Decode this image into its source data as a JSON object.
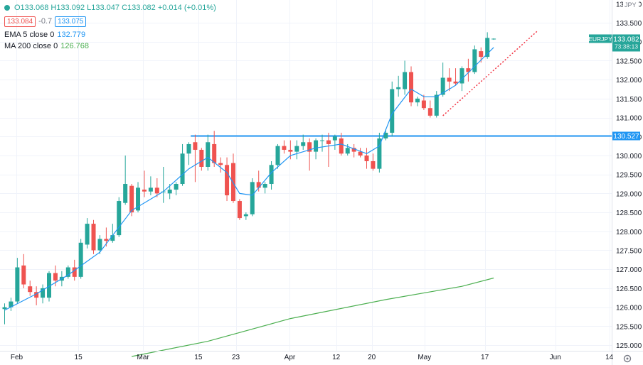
{
  "legend": {
    "ohlc": "O133.068 H133.092 L133.047 C133.082 +0.014 (+0.01%)",
    "sell_price": "133.084",
    "spread": "-0.7",
    "buy_price": "133.075",
    "ema_label": "EMA 5 close 0",
    "ema_value": "132.779",
    "ma_label": "MA 200 close 0",
    "ma_value": "126.768"
  },
  "price_scale": {
    "currency": "JPY",
    "ticks": [
      "125.000",
      "125.500",
      "126.000",
      "126.500",
      "127.000",
      "127.500",
      "128.000",
      "128.500",
      "129.000",
      "129.500",
      "130.000",
      "130.500",
      "131.000",
      "131.500",
      "132.000",
      "132.500",
      "133.000",
      "133.500"
    ],
    "clipped_top_tick": "134.000"
  },
  "time_axis": {
    "ticks": [
      "Feb",
      "15",
      "Mar",
      "15",
      "23",
      "Apr",
      "12",
      "20",
      "May",
      "17",
      "Jun",
      "14"
    ]
  },
  "badges": {
    "symbol": "EURJPY",
    "last_price": "133.082",
    "countdown": "73:38:13",
    "hline_price": "130.527"
  },
  "colors": {
    "up": "#26a69a",
    "down": "#ef5350",
    "ema": "#2196f3",
    "ma": "#4caf50",
    "hline": "#2196f3",
    "trend": "#f23645",
    "grid": "#f0f3fa"
  },
  "chart_data": {
    "type": "candlestick",
    "symbol": "EURJPY",
    "ylim": [
      124.85,
      134.1
    ],
    "horizontal_line": 130.527,
    "candles": [
      {
        "o": 125.95,
        "h": 126.1,
        "l": 125.55,
        "c": 126.0
      },
      {
        "o": 126.0,
        "h": 126.25,
        "l": 125.9,
        "c": 126.15
      },
      {
        "o": 126.15,
        "h": 127.3,
        "l": 126.1,
        "c": 127.05
      },
      {
        "o": 127.1,
        "h": 127.4,
        "l": 126.5,
        "c": 126.6
      },
      {
        "o": 126.55,
        "h": 126.7,
        "l": 126.3,
        "c": 126.4
      },
      {
        "o": 126.4,
        "h": 126.55,
        "l": 126.05,
        "c": 126.25
      },
      {
        "o": 126.25,
        "h": 126.6,
        "l": 126.1,
        "c": 126.5
      },
      {
        "o": 126.25,
        "h": 126.95,
        "l": 126.15,
        "c": 126.9
      },
      {
        "o": 126.9,
        "h": 127.1,
        "l": 126.55,
        "c": 126.7
      },
      {
        "o": 126.7,
        "h": 126.95,
        "l": 126.55,
        "c": 126.8
      },
      {
        "o": 126.8,
        "h": 127.1,
        "l": 126.75,
        "c": 127.05
      },
      {
        "o": 127.05,
        "h": 127.25,
        "l": 126.7,
        "c": 126.8
      },
      {
        "o": 126.8,
        "h": 127.8,
        "l": 126.75,
        "c": 127.7
      },
      {
        "o": 127.65,
        "h": 128.35,
        "l": 127.55,
        "c": 128.2
      },
      {
        "o": 128.2,
        "h": 128.3,
        "l": 127.4,
        "c": 127.5
      },
      {
        "o": 127.5,
        "h": 127.9,
        "l": 127.4,
        "c": 127.8
      },
      {
        "o": 127.8,
        "h": 128.1,
        "l": 127.6,
        "c": 127.75
      },
      {
        "o": 127.75,
        "h": 128.2,
        "l": 127.7,
        "c": 127.9
      },
      {
        "o": 127.9,
        "h": 128.9,
        "l": 127.85,
        "c": 128.8
      },
      {
        "o": 128.75,
        "h": 130.0,
        "l": 128.7,
        "c": 129.25
      },
      {
        "o": 129.2,
        "h": 129.25,
        "l": 128.4,
        "c": 128.5
      },
      {
        "o": 128.55,
        "h": 129.3,
        "l": 128.5,
        "c": 129.15
      },
      {
        "o": 129.1,
        "h": 129.6,
        "l": 128.9,
        "c": 129.05
      },
      {
        "o": 129.05,
        "h": 129.45,
        "l": 128.95,
        "c": 129.15
      },
      {
        "o": 129.15,
        "h": 129.4,
        "l": 128.9,
        "c": 129.0
      },
      {
        "o": 129.05,
        "h": 129.7,
        "l": 128.75,
        "c": 129.05
      },
      {
        "o": 129.0,
        "h": 129.25,
        "l": 128.85,
        "c": 129.1
      },
      {
        "o": 129.1,
        "h": 129.3,
        "l": 128.95,
        "c": 129.25
      },
      {
        "o": 129.25,
        "h": 130.3,
        "l": 129.2,
        "c": 130.05
      },
      {
        "o": 130.05,
        "h": 130.35,
        "l": 129.75,
        "c": 130.3
      },
      {
        "o": 130.35,
        "h": 130.55,
        "l": 129.3,
        "c": 130.15
      },
      {
        "o": 130.15,
        "h": 130.2,
        "l": 129.6,
        "c": 129.7
      },
      {
        "o": 129.7,
        "h": 130.55,
        "l": 129.6,
        "c": 130.35
      },
      {
        "o": 130.3,
        "h": 130.65,
        "l": 129.7,
        "c": 129.8
      },
      {
        "o": 129.8,
        "h": 129.95,
        "l": 129.55,
        "c": 129.75
      },
      {
        "o": 129.75,
        "h": 129.95,
        "l": 128.8,
        "c": 128.95
      },
      {
        "o": 129.8,
        "h": 130.05,
        "l": 128.75,
        "c": 128.8
      },
      {
        "o": 128.8,
        "h": 128.85,
        "l": 128.3,
        "c": 128.35
      },
      {
        "o": 128.4,
        "h": 128.5,
        "l": 128.3,
        "c": 128.45
      },
      {
        "o": 128.45,
        "h": 129.4,
        "l": 128.4,
        "c": 129.3
      },
      {
        "o": 129.3,
        "h": 129.6,
        "l": 129.05,
        "c": 129.15
      },
      {
        "o": 129.15,
        "h": 129.3,
        "l": 129.0,
        "c": 129.25
      },
      {
        "o": 129.25,
        "h": 129.85,
        "l": 129.1,
        "c": 129.75
      },
      {
        "o": 129.75,
        "h": 130.3,
        "l": 129.65,
        "c": 130.25
      },
      {
        "o": 130.25,
        "h": 130.4,
        "l": 130.05,
        "c": 130.15
      },
      {
        "o": 130.15,
        "h": 130.4,
        "l": 129.9,
        "c": 130.1
      },
      {
        "o": 130.1,
        "h": 130.4,
        "l": 129.9,
        "c": 130.25
      },
      {
        "o": 130.25,
        "h": 130.55,
        "l": 130.15,
        "c": 130.35
      },
      {
        "o": 130.35,
        "h": 130.45,
        "l": 129.6,
        "c": 130.1
      },
      {
        "o": 130.1,
        "h": 130.45,
        "l": 129.9,
        "c": 130.4
      },
      {
        "o": 130.4,
        "h": 130.55,
        "l": 130.1,
        "c": 130.4
      },
      {
        "o": 130.4,
        "h": 130.6,
        "l": 129.7,
        "c": 130.3
      },
      {
        "o": 130.4,
        "h": 130.55,
        "l": 130.15,
        "c": 130.5
      },
      {
        "o": 130.45,
        "h": 130.6,
        "l": 130.0,
        "c": 130.05
      },
      {
        "o": 130.05,
        "h": 130.3,
        "l": 130.0,
        "c": 130.2
      },
      {
        "o": 130.2,
        "h": 130.3,
        "l": 129.95,
        "c": 130.1
      },
      {
        "o": 130.1,
        "h": 130.2,
        "l": 129.95,
        "c": 130.0
      },
      {
        "o": 130.0,
        "h": 130.2,
        "l": 129.65,
        "c": 129.85
      },
      {
        "o": 129.85,
        "h": 130.05,
        "l": 129.6,
        "c": 129.65
      },
      {
        "o": 129.65,
        "h": 130.6,
        "l": 129.55,
        "c": 130.45
      },
      {
        "o": 130.45,
        "h": 130.7,
        "l": 130.4,
        "c": 130.6
      },
      {
        "o": 130.6,
        "h": 131.95,
        "l": 130.5,
        "c": 131.75
      },
      {
        "o": 131.75,
        "h": 132.1,
        "l": 131.55,
        "c": 131.8
      },
      {
        "o": 131.75,
        "h": 132.5,
        "l": 131.6,
        "c": 132.2
      },
      {
        "o": 132.2,
        "h": 132.35,
        "l": 131.3,
        "c": 131.4
      },
      {
        "o": 131.4,
        "h": 131.55,
        "l": 131.3,
        "c": 131.5
      },
      {
        "o": 131.45,
        "h": 131.6,
        "l": 131.2,
        "c": 131.25
      },
      {
        "o": 131.25,
        "h": 131.45,
        "l": 131.0,
        "c": 131.05
      },
      {
        "o": 131.05,
        "h": 131.7,
        "l": 131.0,
        "c": 131.6
      },
      {
        "o": 131.6,
        "h": 132.45,
        "l": 131.55,
        "c": 132.05
      },
      {
        "o": 132.05,
        "h": 132.3,
        "l": 131.7,
        "c": 131.95
      },
      {
        "o": 131.95,
        "h": 132.3,
        "l": 131.85,
        "c": 131.9
      },
      {
        "o": 131.9,
        "h": 132.35,
        "l": 131.7,
        "c": 132.3
      },
      {
        "o": 132.3,
        "h": 132.55,
        "l": 131.95,
        "c": 132.2
      },
      {
        "o": 132.2,
        "h": 132.9,
        "l": 132.15,
        "c": 132.8
      },
      {
        "o": 132.75,
        "h": 132.85,
        "l": 132.45,
        "c": 132.6
      },
      {
        "o": 132.6,
        "h": 133.25,
        "l": 132.55,
        "c": 133.1
      },
      {
        "o": 133.07,
        "h": 133.09,
        "l": 133.05,
        "c": 133.08
      }
    ],
    "ema5": {
      "name": "EMA 5 close 0",
      "points": [
        [
          0,
          125.92
        ],
        [
          5,
          126.35
        ],
        [
          10,
          126.85
        ],
        [
          15,
          127.45
        ],
        [
          20,
          128.55
        ],
        [
          25,
          129.05
        ],
        [
          29,
          129.65
        ],
        [
          32,
          129.95
        ],
        [
          35,
          129.55
        ],
        [
          37,
          129.0
        ],
        [
          39,
          128.95
        ],
        [
          42,
          129.55
        ],
        [
          45,
          130.0
        ],
        [
          49,
          130.2
        ],
        [
          53,
          130.3
        ],
        [
          57,
          130.05
        ],
        [
          59,
          130.25
        ],
        [
          61,
          131.1
        ],
        [
          64,
          131.75
        ],
        [
          66,
          131.55
        ],
        [
          68,
          131.55
        ],
        [
          71,
          131.85
        ],
        [
          74,
          132.35
        ],
        [
          77,
          132.85
        ]
      ]
    },
    "ma200": {
      "name": "MA 200 close 0",
      "points": [
        [
          20,
          124.7
        ],
        [
          32,
          125.1
        ],
        [
          45,
          125.7
        ],
        [
          60,
          126.2
        ],
        [
          72,
          126.55
        ],
        [
          77,
          126.77
        ]
      ]
    },
    "trend_line": {
      "points": [
        [
          69,
          131.05
        ],
        [
          84,
          133.3
        ]
      ]
    },
    "x_ticks": [
      {
        "label": "Feb",
        "at": 1.9
      },
      {
        "label": "15",
        "at": 11.6
      },
      {
        "label": "Mar",
        "at": 21.8
      },
      {
        "label": "15",
        "at": 30.5
      },
      {
        "label": "23",
        "at": 36.4
      },
      {
        "label": "Apr",
        "at": 44.9
      },
      {
        "label": "12",
        "at": 52.2
      },
      {
        "label": "20",
        "at": 57.8
      },
      {
        "label": "May",
        "at": 66.1
      },
      {
        "label": "17",
        "at": 75.6
      },
      {
        "label": "Jun",
        "at": 86.7
      },
      {
        "label": "14",
        "at": 95.2
      }
    ]
  }
}
